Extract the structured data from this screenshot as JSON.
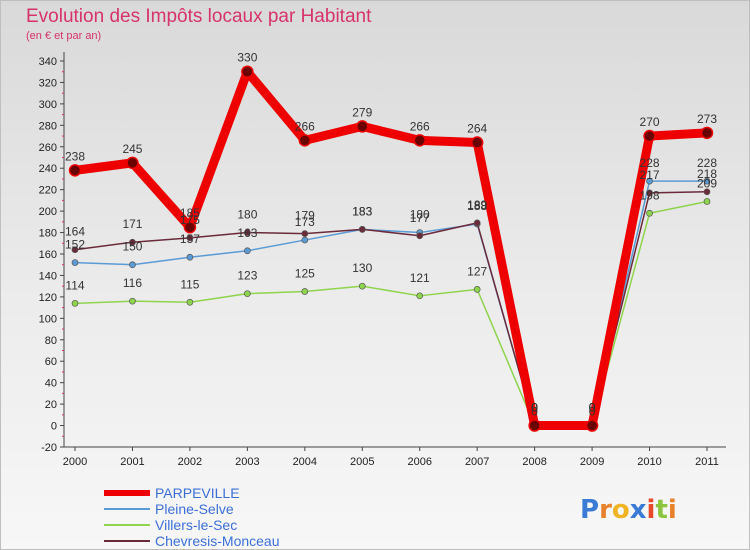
{
  "chart_data": {
    "type": "line",
    "title": "Evolution des Impôts locaux par Habitant",
    "subtitle": "(en € et par an)",
    "categories": [
      "2000",
      "2001",
      "2002",
      "2003",
      "2004",
      "2005",
      "2006",
      "2007",
      "2008",
      "2009",
      "2010",
      "2011"
    ],
    "yticks": [
      -20,
      0,
      20,
      40,
      60,
      80,
      100,
      120,
      140,
      160,
      180,
      200,
      220,
      240,
      260,
      280,
      300,
      320,
      340
    ],
    "ylim": [
      -20,
      340
    ],
    "grid": false,
    "legend_position": "bottom-left",
    "series": [
      {
        "name": "PARPEVILLE",
        "color": "#ee0000",
        "values": [
          238,
          245,
          185,
          330,
          266,
          279,
          266,
          264,
          0,
          0,
          270,
          273
        ],
        "labels": [
          "238",
          "245",
          "185",
          "330",
          "266",
          "279",
          "266",
          "264",
          "0",
          "0",
          "270",
          "273"
        ]
      },
      {
        "name": "Pleine-Selve",
        "color": "#5b9bd5",
        "values": [
          152,
          150,
          157,
          163,
          173,
          183,
          180,
          188,
          0,
          0,
          228,
          228
        ],
        "labels": [
          "152",
          "150",
          "157",
          "163",
          "173",
          "183",
          "180",
          "188",
          "0",
          "0",
          "228",
          "228"
        ]
      },
      {
        "name": "Villers-le-Sec",
        "color": "#8ed44d",
        "values": [
          114,
          116,
          115,
          123,
          125,
          130,
          121,
          127,
          0,
          0,
          198,
          209
        ],
        "labels": [
          "114",
          "116",
          "115",
          "123",
          "125",
          "130",
          "121",
          "127",
          "0",
          "0",
          "198",
          "209"
        ]
      },
      {
        "name": "Chevresis-Monceau",
        "color": "#6b2a3a",
        "values": [
          164,
          171,
          175,
          180,
          179,
          183,
          177,
          189,
          0,
          0,
          217,
          218
        ],
        "labels": [
          "164",
          "171",
          "175",
          "180",
          "179",
          "183",
          "177",
          "189",
          "0",
          "0",
          "217",
          "218"
        ]
      }
    ]
  },
  "brand": {
    "letters": [
      "P",
      "r",
      "o",
      "x",
      "i",
      "t",
      "i"
    ],
    "colors": [
      "#3a7bd5",
      "#e8822a",
      "#f0b323",
      "#3a7bd5",
      "#e84a2a",
      "#8cc63f",
      "#e8822a"
    ]
  }
}
